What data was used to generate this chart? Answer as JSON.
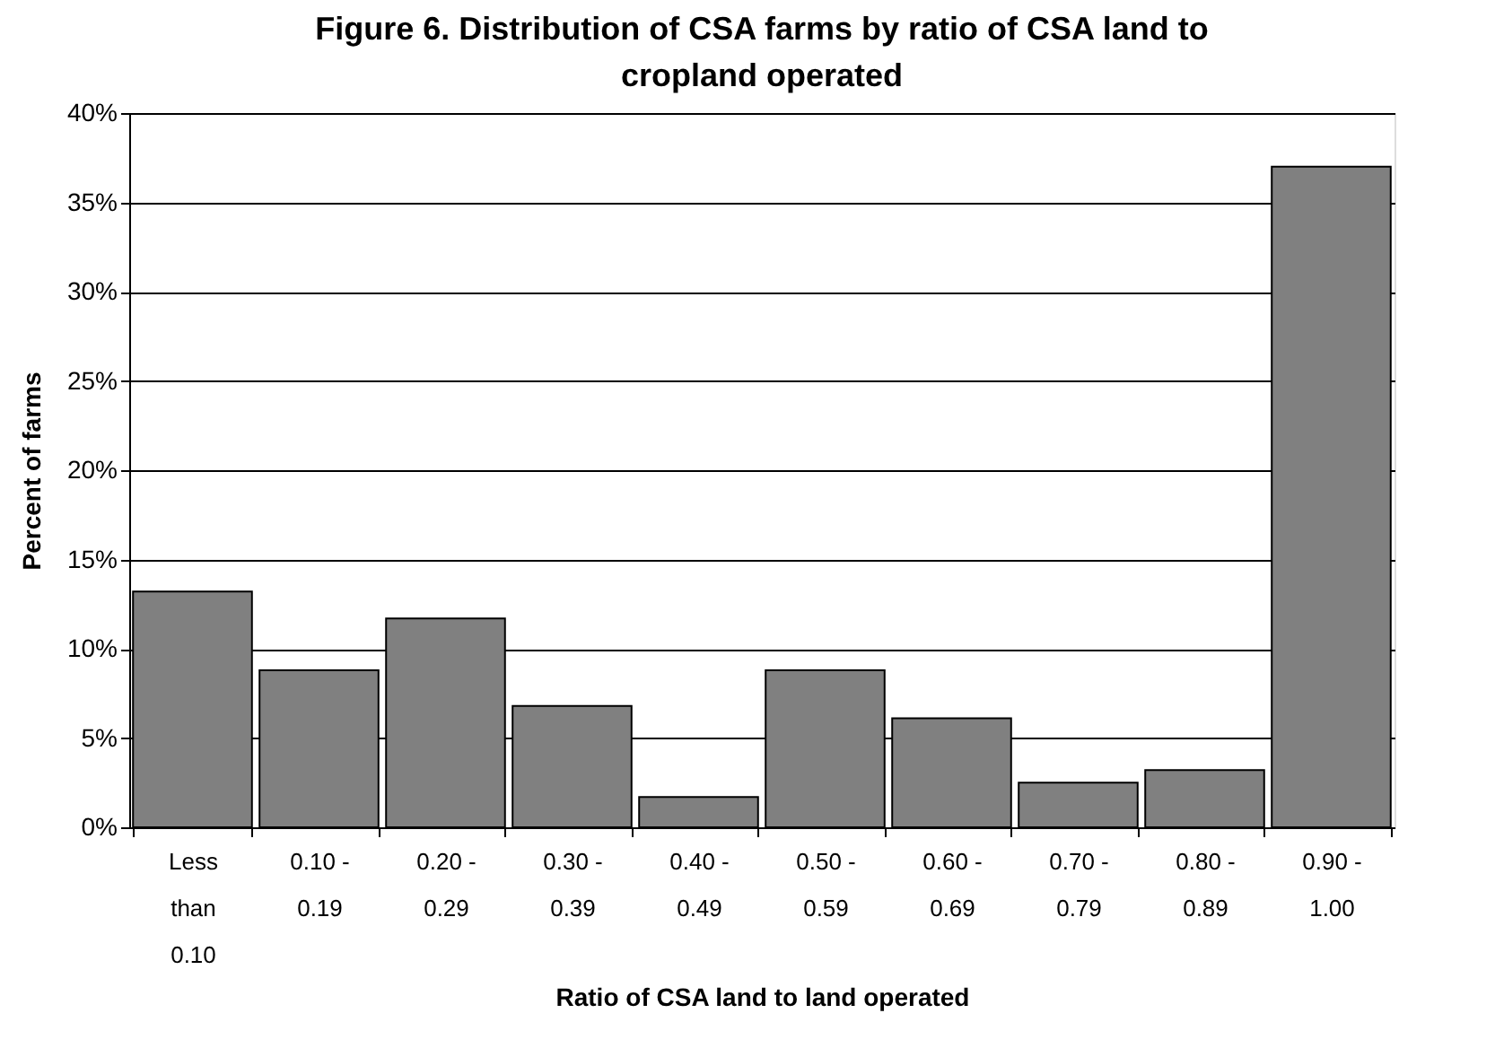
{
  "chart_data": {
    "type": "bar",
    "title": "Figure 6.  Distribution of CSA farms by ratio of CSA land to cropland operated",
    "xlabel": "Ratio of CSA land to land operated",
    "ylabel": "Percent of farms",
    "categories": [
      "Less\nthan\n0.10",
      "0.10 -\n0.19",
      "0.20 -\n0.29",
      "0.30 -\n0.39",
      "0.40 -\n0.49",
      "0.50 -\n0.59",
      "0.60 -\n0.69",
      "0.70 -\n0.79",
      "0.80 -\n0.89",
      "0.90 -\n1.00"
    ],
    "values": [
      13.2,
      8.8,
      11.7,
      6.8,
      1.7,
      8.8,
      6.1,
      2.5,
      3.2,
      37.0
    ],
    "color": "#808080",
    "ylim": [
      0,
      40
    ],
    "yticks": [
      {
        "value": 0,
        "label": "0%"
      },
      {
        "value": 5,
        "label": "5%"
      },
      {
        "value": 10,
        "label": "10%"
      },
      {
        "value": 15,
        "label": "15%"
      },
      {
        "value": 20,
        "label": "20%"
      },
      {
        "value": 25,
        "label": "25%"
      },
      {
        "value": 30,
        "label": "30%"
      },
      {
        "value": 35,
        "label": "35%"
      },
      {
        "value": 40,
        "label": "40%"
      }
    ],
    "grid": "y"
  }
}
